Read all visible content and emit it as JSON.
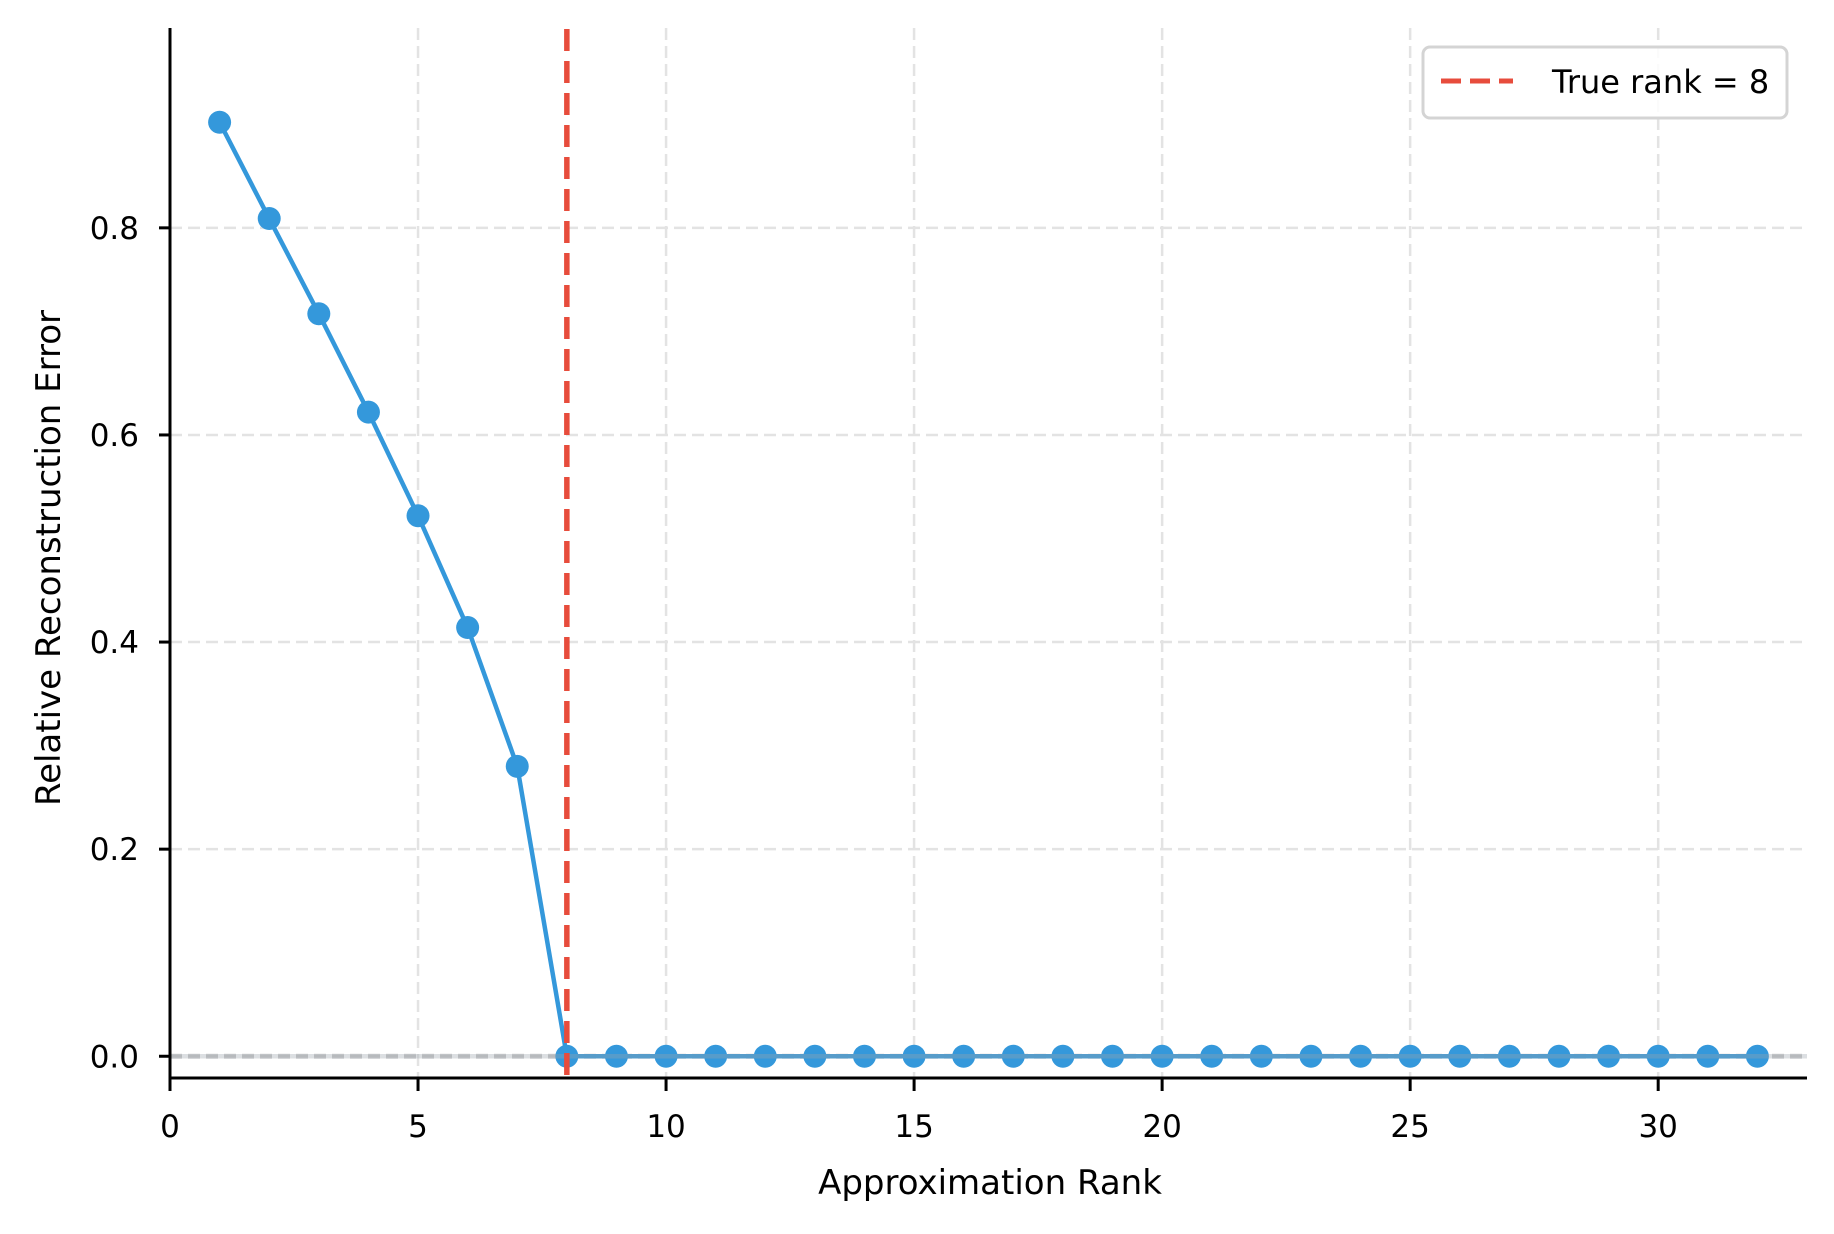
{
  "chart_data": {
    "type": "line",
    "title": "",
    "xlabel": "Approximation Rank",
    "ylabel": "Relative Reconstruction Error",
    "xlim": [
      0,
      33
    ],
    "ylim": [
      -0.021,
      0.993
    ],
    "xticks": [
      0,
      5,
      10,
      15,
      20,
      25,
      30
    ],
    "xtick_labels": [
      "0",
      "5",
      "10",
      "15",
      "20",
      "25",
      "30"
    ],
    "yticks": [
      0.0,
      0.2,
      0.4,
      0.6,
      0.8
    ],
    "ytick_labels": [
      "0.0",
      "0.2",
      "0.4",
      "0.6",
      "0.8"
    ],
    "grid": true,
    "legend_position": "upper right",
    "series": [
      {
        "name": "Relative reconstruction error",
        "color": "#3498db",
        "marker": "circle",
        "x": [
          1,
          2,
          3,
          4,
          5,
          6,
          7,
          8,
          9,
          10,
          11,
          12,
          13,
          14,
          15,
          16,
          17,
          18,
          19,
          20,
          21,
          22,
          23,
          24,
          25,
          26,
          27,
          28,
          29,
          30,
          31,
          32
        ],
        "values": [
          0.902,
          0.809,
          0.717,
          0.622,
          0.522,
          0.414,
          0.28,
          0,
          0,
          0,
          0,
          0,
          0,
          0,
          0,
          0,
          0,
          0,
          0,
          0,
          0,
          0,
          0,
          0,
          0,
          0,
          0,
          0,
          0,
          0,
          0,
          0
        ]
      }
    ],
    "annotations": [
      {
        "type": "vline",
        "x": 8,
        "style": "dashed",
        "color": "#e74c3c",
        "label": "True rank = 8"
      },
      {
        "type": "hline",
        "y": 0,
        "style": "dashed",
        "color": "#b0b0b0"
      }
    ],
    "legend": [
      {
        "label": "True rank = 8",
        "color": "#e74c3c",
        "style": "dashed"
      }
    ]
  },
  "colors": {
    "series": "#3498db",
    "true_rank_line": "#e74c3c",
    "grid": "#e3e3e3",
    "zero_line": "#b0b0b0",
    "axis": "#000000"
  }
}
